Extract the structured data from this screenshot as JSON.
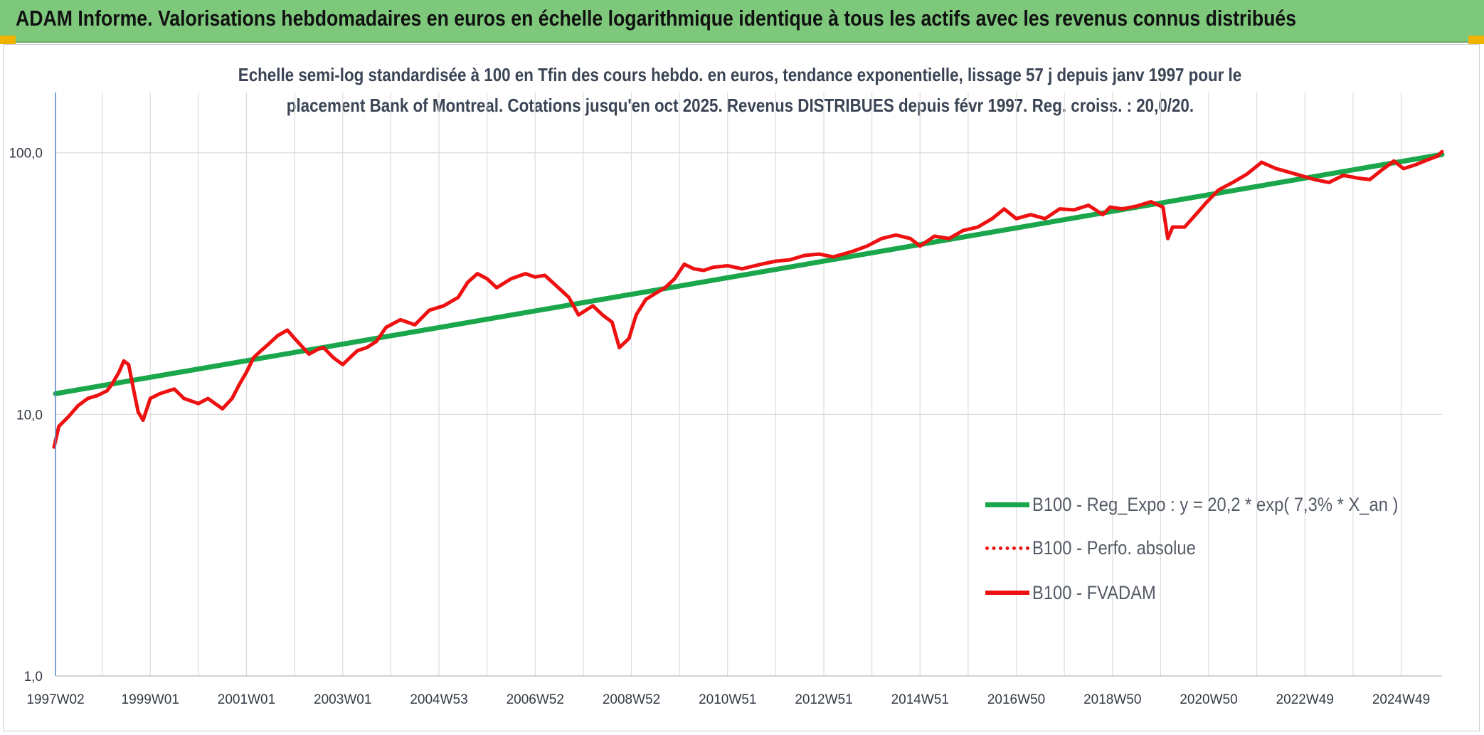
{
  "banner": {
    "title": "ADAM Informe. Valorisations hebdomadaires en euros en échelle logarithmique identique à tous les actifs avec les revenus connus distribués"
  },
  "colors": {
    "banner_bg": "#7ec87c",
    "corner_accent": "#f0b400",
    "trend": "#1aa64a",
    "fvadam": "#ee1111",
    "perfo": "#ee1111",
    "grid": "#dcdcdc",
    "axis": "#5b84c4"
  },
  "chart_data": {
    "type": "line",
    "title_lines": [
      "Echelle semi-log standardisée à 100 en Tfin des cours hebdo. en euros, tendance exponentielle, lissage 57 j depuis janv 1997 pour le",
      "placement Bank of Montreal. Cotations jusqu'en oct 2025. Revenus DISTRIBUES depuis févr 1997. Reg. croiss. : 20,0/20."
    ],
    "y_scale": "log",
    "ylim": [
      1,
      170
    ],
    "y_ticks": [
      {
        "value": 1,
        "label": "1,0"
      },
      {
        "value": 10,
        "label": "10,0"
      },
      {
        "value": 100,
        "label": "100,0"
      }
    ],
    "xlim": [
      1997.03,
      2025.85
    ],
    "x_ticks": [
      {
        "value": 1997.03,
        "label": "1997W02"
      },
      {
        "value": 1999.0,
        "label": "1999W01"
      },
      {
        "value": 2001.0,
        "label": "2001W01"
      },
      {
        "value": 2003.0,
        "label": "2003W01"
      },
      {
        "value": 2005.0,
        "label": "2004W53"
      },
      {
        "value": 2007.0,
        "label": "2006W52"
      },
      {
        "value": 2009.0,
        "label": "2008W52"
      },
      {
        "value": 2011.0,
        "label": "2010W51"
      },
      {
        "value": 2013.0,
        "label": "2012W51"
      },
      {
        "value": 2015.0,
        "label": "2014W51"
      },
      {
        "value": 2017.0,
        "label": "2016W50"
      },
      {
        "value": 2019.0,
        "label": "2018W50"
      },
      {
        "value": 2021.0,
        "label": "2020W50"
      },
      {
        "value": 2023.0,
        "label": "2022W49"
      },
      {
        "value": 2025.0,
        "label": "2024W49"
      }
    ],
    "x_minor_gridlines": [
      1998,
      2000,
      2002,
      2004,
      2006,
      2008,
      2010,
      2012,
      2014,
      2016,
      2018,
      2020,
      2022,
      2024
    ],
    "grid": true,
    "legend_position": "lower-right",
    "series": [
      {
        "name": "B100 - Reg_Expo : y = 20,2 * exp( 7,3% *  X_an )",
        "style": "solid-thick",
        "x": [
          1997.03,
          2025.85
        ],
        "values": [
          12.0,
          98.5
        ]
      },
      {
        "name": "B100 - Perfo. absolue",
        "style": "dotted",
        "x": [],
        "values": []
      },
      {
        "name": "B100 - FVADAM",
        "style": "solid",
        "x": [
          1997.0,
          1997.1,
          1997.3,
          1997.5,
          1997.7,
          1997.9,
          1998.1,
          1998.2,
          1998.35,
          1998.45,
          1998.55,
          1998.65,
          1998.75,
          1998.85,
          1999.0,
          1999.2,
          1999.5,
          1999.7,
          2000.0,
          2000.2,
          2000.5,
          2000.7,
          2000.85,
          2001.0,
          2001.15,
          2001.3,
          2001.45,
          2001.65,
          2001.85,
          2002.0,
          2002.3,
          2002.5,
          2002.6,
          2002.8,
          2003.0,
          2003.3,
          2003.5,
          2003.7,
          2003.9,
          2004.2,
          2004.5,
          2004.8,
          2005.1,
          2005.4,
          2005.6,
          2005.8,
          2006.0,
          2006.2,
          2006.5,
          2006.8,
          2007.0,
          2007.2,
          2007.4,
          2007.7,
          2007.9,
          2008.2,
          2008.4,
          2008.6,
          2008.75,
          2008.95,
          2009.1,
          2009.3,
          2009.5,
          2009.7,
          2009.9,
          2010.1,
          2010.3,
          2010.5,
          2010.7,
          2011.0,
          2011.3,
          2011.7,
          2012.0,
          2012.3,
          2012.6,
          2012.9,
          2013.2,
          2013.6,
          2013.9,
          2014.2,
          2014.5,
          2014.8,
          2015.0,
          2015.3,
          2015.6,
          2015.9,
          2016.2,
          2016.5,
          2016.75,
          2017.0,
          2017.3,
          2017.6,
          2017.9,
          2018.2,
          2018.5,
          2018.8,
          2018.95,
          2019.2,
          2019.5,
          2019.8,
          2020.05,
          2020.15,
          2020.25,
          2020.5,
          2020.8,
          2020.95,
          2021.2,
          2021.5,
          2021.8,
          2022.1,
          2022.4,
          2022.6,
          2022.9,
          2023.2,
          2023.5,
          2023.8,
          2024.1,
          2024.35,
          2024.6,
          2024.85,
          2025.05,
          2025.3,
          2025.55,
          2025.75,
          2025.85
        ],
        "values": [
          7.5,
          9.0,
          9.8,
          10.8,
          11.5,
          11.8,
          12.3,
          13.0,
          14.5,
          16.0,
          15.5,
          12.5,
          10.2,
          9.5,
          11.5,
          12.0,
          12.5,
          11.5,
          11.0,
          11.5,
          10.5,
          11.5,
          13.0,
          14.5,
          16.5,
          17.5,
          18.5,
          20.0,
          21.0,
          19.5,
          17.0,
          17.8,
          18.0,
          16.5,
          15.5,
          17.5,
          18.0,
          19.0,
          21.5,
          23.0,
          22.0,
          25.0,
          26.0,
          28.0,
          32.0,
          34.5,
          33.0,
          30.5,
          33.0,
          34.5,
          33.5,
          34.0,
          31.5,
          28.0,
          24.0,
          26.0,
          24.0,
          22.5,
          18.0,
          19.5,
          24.0,
          27.5,
          29.0,
          30.5,
          33.0,
          37.5,
          36.0,
          35.5,
          36.5,
          37.0,
          36.0,
          37.5,
          38.5,
          39.0,
          40.5,
          41.0,
          40.0,
          42.0,
          44.0,
          47.0,
          48.5,
          47.0,
          44.0,
          48.0,
          47.0,
          50.5,
          52.0,
          56.0,
          61.0,
          56.0,
          58.0,
          56.0,
          61.0,
          60.5,
          63.0,
          58.0,
          62.0,
          61.0,
          62.5,
          65.0,
          62.0,
          47.0,
          52.0,
          52.0,
          60.0,
          64.5,
          72.0,
          77.0,
          83.0,
          92.0,
          87.0,
          85.0,
          82.0,
          79.0,
          77.0,
          82.0,
          80.0,
          79.0,
          86.0,
          93.0,
          87.0,
          90.0,
          94.0,
          97.0,
          101.0
        ]
      }
    ]
  }
}
